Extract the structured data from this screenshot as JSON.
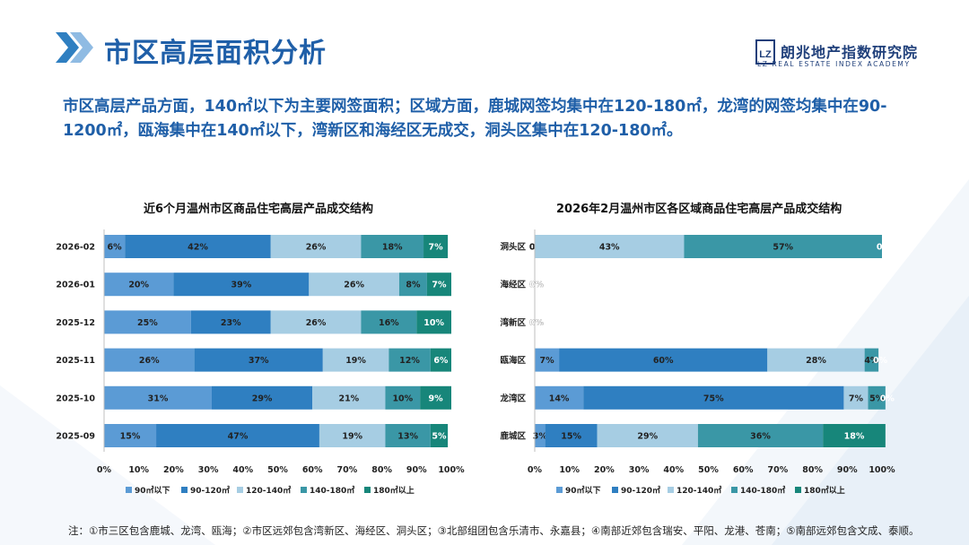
{
  "header": {
    "title": "市区高层面积分析",
    "logo_cn": "朗兆地产指数研究院",
    "logo_en": "LZ REAL ESTATE INDEX ACADEMY",
    "logo_mark": "LZ"
  },
  "summary": "市区高层产品方面，140㎡以下为主要网签面积；区域方面，鹿城网签均集中在120-180㎡，龙湾的网签均集中在90-1200㎡，瓯海集中在140㎡以下，湾新区和海经区无成交，洞头区集中在120-180㎡。",
  "footnote": "注：①市三区包含鹿城、龙湾、瓯海；②市区远郊包含湾新区、海经区、洞头区；③北部组团包含乐清市、永嘉县；④南部近郊包含瑞安、平阳、龙港、苍南；⑤南部远郊包含文成、泰顺。",
  "colors": {
    "title": "#1f5fa8",
    "series": [
      "#5b9bd5",
      "#2f7fc1",
      "#a6cde3",
      "#3a97a6",
      "#17867a"
    ]
  },
  "chart_data": [
    {
      "type": "bar",
      "orientation": "horizontal-stacked-100",
      "title": "近6个月温州市区商品住宅高层产品成交结构",
      "categories": [
        "2026-02",
        "2026-01",
        "2025-12",
        "2025-11",
        "2025-10",
        "2025-09"
      ],
      "series": [
        {
          "name": "90㎡以下",
          "values": [
            6,
            20,
            25,
            26,
            31,
            15
          ]
        },
        {
          "name": "90-120㎡",
          "values": [
            42,
            39,
            23,
            37,
            29,
            47
          ]
        },
        {
          "name": "120-140㎡",
          "values": [
            26,
            26,
            26,
            19,
            21,
            19
          ]
        },
        {
          "name": "140-180㎡",
          "values": [
            18,
            8,
            16,
            12,
            10,
            13
          ]
        },
        {
          "name": "180㎡以上",
          "values": [
            7,
            7,
            10,
            6,
            9,
            5
          ]
        }
      ],
      "xticks": [
        "0%",
        "10%",
        "20%",
        "30%",
        "40%",
        "50%",
        "60%",
        "70%",
        "80%",
        "90%",
        "100%"
      ],
      "xlim": [
        0,
        100
      ],
      "legend": "bottom"
    },
    {
      "type": "bar",
      "orientation": "horizontal-stacked-100",
      "title": "2026年2月温州市区各区域商品住宅高层产品成交结构",
      "categories": [
        "洞头区",
        "海经区",
        "湾新区",
        "瓯海区",
        "龙湾区",
        "鹿城区"
      ],
      "series": [
        {
          "name": "90㎡以下",
          "values": [
            0,
            0,
            0,
            7,
            14,
            3
          ]
        },
        {
          "name": "90-120㎡",
          "values": [
            0,
            0,
            0,
            60,
            75,
            15
          ]
        },
        {
          "name": "120-140㎡",
          "values": [
            43,
            0,
            0,
            28,
            7,
            29
          ]
        },
        {
          "name": "140-180㎡",
          "values": [
            57,
            0,
            0,
            4,
            5,
            36
          ]
        },
        {
          "name": "180㎡以上",
          "values": [
            0,
            0,
            0,
            0,
            0,
            18
          ]
        }
      ],
      "xticks": [
        "0%",
        "10%",
        "20%",
        "30%",
        "40%",
        "50%",
        "60%",
        "70%",
        "80%",
        "90%",
        "100%"
      ],
      "xlim": [
        0,
        100
      ],
      "legend": "bottom"
    }
  ]
}
